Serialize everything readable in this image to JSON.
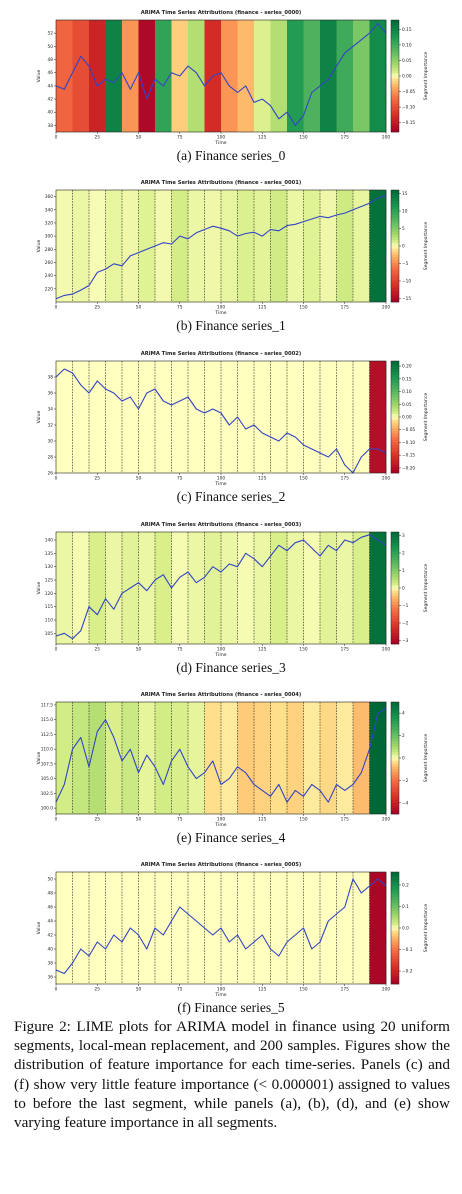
{
  "figure_caption": "Figure 2: LIME plots for ARIMA model in finance using 20 uniform segments, local-mean replacement, and 200 samples. Figures show the distribution of feature importance for each time-series. Panels (c) and (f) show very little feature importance (< 0.000001) assigned to values to before the last segment, while panels (a), (b), (d), and (e) show varying feature importance in all segments.",
  "chart_data": [
    {
      "type": "line",
      "panel_caption": "(a) Finance series_0",
      "title": "ARIMA Time Series Attributions (finance - series_0000)",
      "xlabel": "Time",
      "ylabel": "Value",
      "colorbar_label": "Segment Importance",
      "xlim": [
        0,
        200
      ],
      "ylim": [
        37,
        54
      ],
      "xticks": [
        0,
        25,
        50,
        75,
        100,
        125,
        150,
        175,
        200
      ],
      "yticks": [
        38,
        40,
        42,
        44,
        46,
        48,
        50,
        52
      ],
      "colorbar_range": [
        -0.18,
        0.18
      ],
      "colorbar_ticks": [
        "0.15",
        "0.10",
        "0.05",
        "0.00",
        "−0.05",
        "−0.10",
        "−0.15"
      ],
      "colorbar_tick_values": [
        0.15,
        0.1,
        0.05,
        0.0,
        -0.05,
        -0.1,
        -0.15
      ],
      "divider_lines": false,
      "segment_importance": [
        -0.08,
        -0.1,
        -0.14,
        0.15,
        -0.05,
        -0.17,
        0.11,
        -0.02,
        0.03,
        -0.13,
        -0.05,
        -0.03,
        0.01,
        0.03,
        0.12,
        0.09,
        0.15,
        0.1,
        0.06,
        0.14
      ],
      "series": [
        {
          "x": [
            0,
            5,
            10,
            15,
            20,
            25,
            30,
            35,
            40,
            45,
            50,
            55,
            60,
            65,
            70,
            75,
            80,
            85,
            90,
            95,
            100,
            105,
            110,
            115,
            120,
            125,
            130,
            135,
            140,
            145,
            150,
            155,
            160,
            165,
            170,
            175,
            180,
            185,
            190,
            195,
            200
          ],
          "values": [
            44,
            43.5,
            46,
            48.5,
            47,
            44,
            45,
            44.5,
            46,
            43.5,
            46,
            42,
            45,
            44,
            46,
            45.5,
            47,
            46,
            44,
            45.5,
            46,
            44,
            43,
            44,
            41.5,
            42,
            41,
            39,
            40,
            38,
            39.5,
            43,
            44,
            45,
            47,
            49,
            50,
            51,
            52,
            53.5,
            52
          ]
        }
      ]
    },
    {
      "type": "line",
      "panel_caption": "(b) Finance series_1",
      "title": "ARIMA Time Series Attributions (finance - series_0001)",
      "xlabel": "Time",
      "ylabel": "Value",
      "colorbar_label": "Segment Importance",
      "xlim": [
        0,
        200
      ],
      "ylim": [
        200,
        370
      ],
      "xticks": [
        0,
        25,
        50,
        75,
        100,
        125,
        150,
        175,
        200
      ],
      "yticks": [
        220,
        240,
        260,
        280,
        300,
        320,
        340,
        360
      ],
      "colorbar_range": [
        -16,
        16
      ],
      "colorbar_ticks": [
        "15",
        "10",
        "5",
        "0",
        "−5",
        "−10",
        "−15"
      ],
      "colorbar_tick_values": [
        15,
        10,
        5,
        0,
        -5,
        -10,
        -15
      ],
      "divider_lines": true,
      "segment_importance": [
        0.3,
        0.5,
        0.2,
        0.6,
        0.4,
        0.8,
        0.3,
        1.2,
        0.5,
        0.4,
        0.6,
        0.9,
        0.7,
        1.3,
        0.5,
        0.8,
        0.4,
        1.5,
        0.6,
        15
      ],
      "series": [
        {
          "x": [
            0,
            5,
            10,
            15,
            20,
            25,
            30,
            35,
            40,
            45,
            50,
            55,
            60,
            65,
            70,
            75,
            80,
            85,
            90,
            95,
            100,
            105,
            110,
            115,
            120,
            125,
            130,
            135,
            140,
            145,
            150,
            155,
            160,
            165,
            170,
            175,
            180,
            185,
            190,
            195,
            200
          ],
          "values": [
            205,
            210,
            212,
            218,
            225,
            245,
            250,
            258,
            255,
            270,
            275,
            280,
            285,
            290,
            288,
            300,
            296,
            305,
            310,
            315,
            312,
            308,
            300,
            304,
            306,
            300,
            310,
            308,
            316,
            318,
            322,
            326,
            330,
            328,
            332,
            335,
            340,
            345,
            350,
            358,
            362
          ]
        }
      ]
    },
    {
      "type": "line",
      "panel_caption": "(c) Finance series_2",
      "title": "ARIMA Time Series Attributions (finance - series_0002)",
      "xlabel": "Time",
      "ylabel": "Value",
      "colorbar_label": "Segment Importance",
      "xlim": [
        0,
        200
      ],
      "ylim": [
        26,
        40
      ],
      "xticks": [
        0,
        25,
        50,
        75,
        100,
        125,
        150,
        175,
        200
      ],
      "yticks": [
        26,
        28,
        30,
        32,
        34,
        36,
        38
      ],
      "colorbar_range": [
        -0.22,
        0.22
      ],
      "colorbar_ticks": [
        "0.20",
        "0.15",
        "0.10",
        "0.05",
        "0.00",
        "−0.05",
        "−0.10",
        "−0.15",
        "−0.20"
      ],
      "colorbar_tick_values": [
        0.2,
        0.15,
        0.1,
        0.05,
        0.0,
        -0.05,
        -0.1,
        -0.15,
        -0.2
      ],
      "divider_lines": true,
      "segment_importance": [
        0,
        0,
        0,
        0,
        0,
        0,
        0,
        0,
        0,
        0,
        0,
        0,
        0,
        0,
        0,
        0,
        0,
        0,
        0,
        -0.2
      ],
      "series": [
        {
          "x": [
            0,
            5,
            10,
            15,
            20,
            25,
            30,
            35,
            40,
            45,
            50,
            55,
            60,
            65,
            70,
            75,
            80,
            85,
            90,
            95,
            100,
            105,
            110,
            115,
            120,
            125,
            130,
            135,
            140,
            145,
            150,
            155,
            160,
            165,
            170,
            175,
            180,
            185,
            190,
            195,
            200
          ],
          "values": [
            38,
            39,
            38.5,
            37,
            36,
            37.5,
            36.5,
            36,
            35,
            35.5,
            34,
            36,
            36.5,
            35,
            34.5,
            35,
            35.5,
            34,
            33.5,
            34,
            33.5,
            32,
            33,
            31.5,
            32,
            31,
            30.5,
            30,
            31,
            30.5,
            29.5,
            29,
            28.5,
            28,
            29,
            27,
            26,
            28,
            29,
            29,
            28.5
          ]
        }
      ]
    },
    {
      "type": "line",
      "panel_caption": "(d) Finance series_3",
      "title": "ARIMA Time Series Attributions (finance - series_0003)",
      "xlabel": "Time",
      "ylabel": "Value",
      "colorbar_label": "Segment Importance",
      "xlim": [
        0,
        200
      ],
      "ylim": [
        101,
        143
      ],
      "xticks": [
        0,
        25,
        50,
        75,
        100,
        125,
        150,
        175,
        200
      ],
      "yticks": [
        105,
        110,
        115,
        120,
        125,
        130,
        135,
        140
      ],
      "colorbar_range": [
        -3.2,
        3.2
      ],
      "colorbar_ticks": [
        "3",
        "2",
        "1",
        "0",
        "−1",
        "−2",
        "−3"
      ],
      "colorbar_tick_values": [
        3,
        2,
        1,
        0,
        -1,
        -2,
        -3
      ],
      "divider_lines": true,
      "segment_importance": [
        0.1,
        0.05,
        0.2,
        0.1,
        0.15,
        0.1,
        0.2,
        0.05,
        0.1,
        0.15,
        0.1,
        0.05,
        0.1,
        0.2,
        0.1,
        0.05,
        0.15,
        0.1,
        0.2,
        3
      ],
      "series": [
        {
          "x": [
            0,
            5,
            10,
            15,
            20,
            25,
            30,
            35,
            40,
            45,
            50,
            55,
            60,
            65,
            70,
            75,
            80,
            85,
            90,
            95,
            100,
            105,
            110,
            115,
            120,
            125,
            130,
            135,
            140,
            145,
            150,
            155,
            160,
            165,
            170,
            175,
            180,
            185,
            190,
            195,
            200
          ],
          "values": [
            104,
            105,
            103,
            106,
            115,
            112,
            118,
            114,
            120,
            122,
            124,
            121,
            125,
            127,
            122,
            126,
            128,
            124,
            126,
            130,
            128,
            131,
            130,
            135,
            133,
            130,
            134,
            138,
            136,
            139,
            140,
            137,
            134,
            138,
            136,
            140,
            139,
            141,
            142,
            140,
            138
          ]
        }
      ]
    },
    {
      "type": "line",
      "panel_caption": "(e) Finance series_4",
      "title": "ARIMA Time Series Attributions (finance - series_0004)",
      "xlabel": "Time",
      "ylabel": "Value",
      "colorbar_label": "Segment Importance",
      "xlim": [
        0,
        200
      ],
      "ylim": [
        99,
        118
      ],
      "xticks": [
        0,
        25,
        50,
        75,
        100,
        125,
        150,
        175,
        200
      ],
      "yticks": [
        100.0,
        102.5,
        105.0,
        107.5,
        110.0,
        112.5,
        115.0,
        117.5
      ],
      "ytick_labels": [
        "100.0",
        "102.5",
        "105.0",
        "107.5",
        "110.0",
        "112.5",
        "115.0",
        "117.5"
      ],
      "colorbar_range": [
        -5,
        5
      ],
      "colorbar_ticks": [
        "4",
        "2",
        "0",
        "−2",
        "−4"
      ],
      "colorbar_tick_values": [
        4,
        2,
        0,
        -2,
        -4
      ],
      "divider_lines": true,
      "segment_importance": [
        0.4,
        0.6,
        0.8,
        0.3,
        0.5,
        0.2,
        0.4,
        0.3,
        0.2,
        -0.3,
        -0.2,
        -0.6,
        -0.5,
        -0.3,
        -0.5,
        -0.2,
        -0.4,
        -0.2,
        -0.8,
        5
      ],
      "series": [
        {
          "x": [
            0,
            5,
            10,
            15,
            20,
            25,
            30,
            35,
            40,
            45,
            50,
            55,
            60,
            65,
            70,
            75,
            80,
            85,
            90,
            95,
            100,
            105,
            110,
            115,
            120,
            125,
            130,
            135,
            140,
            145,
            150,
            155,
            160,
            165,
            170,
            175,
            180,
            185,
            190,
            195,
            200
          ],
          "values": [
            101,
            104,
            110,
            112,
            107,
            113,
            115,
            112,
            108,
            110,
            106,
            109,
            107,
            104,
            108,
            110,
            107,
            105,
            106,
            108,
            104,
            105,
            107,
            106,
            104,
            103,
            102,
            104,
            101,
            103,
            102,
            104,
            103,
            101,
            104,
            103,
            104,
            106,
            110,
            116,
            117
          ]
        }
      ]
    },
    {
      "type": "line",
      "panel_caption": "(f) Finance series_5",
      "title": "ARIMA Time Series Attributions (finance - series_0005)",
      "xlabel": "Time",
      "ylabel": "Value",
      "colorbar_label": "Segment Importance",
      "xlim": [
        0,
        200
      ],
      "ylim": [
        35,
        51
      ],
      "xticks": [
        0,
        25,
        50,
        75,
        100,
        125,
        150,
        175,
        200
      ],
      "yticks": [
        36,
        38,
        40,
        42,
        44,
        46,
        48,
        50
      ],
      "colorbar_range": [
        -0.26,
        0.26
      ],
      "colorbar_ticks": [
        "0.2",
        "0.1",
        "0.0",
        "−0.1",
        "−0.2"
      ],
      "colorbar_tick_values": [
        0.2,
        0.1,
        0.0,
        -0.1,
        -0.2
      ],
      "divider_lines": true,
      "segment_importance": [
        0,
        0,
        0,
        0,
        0,
        0,
        0,
        0,
        0,
        0,
        0,
        0,
        0,
        0,
        0,
        0,
        0,
        0,
        0,
        -0.25
      ],
      "series": [
        {
          "x": [
            0,
            5,
            10,
            15,
            20,
            25,
            30,
            35,
            40,
            45,
            50,
            55,
            60,
            65,
            70,
            75,
            80,
            85,
            90,
            95,
            100,
            105,
            110,
            115,
            120,
            125,
            130,
            135,
            140,
            145,
            150,
            155,
            160,
            165,
            170,
            175,
            180,
            185,
            190,
            195,
            200
          ],
          "values": [
            37,
            36.5,
            38,
            40,
            39,
            41,
            40,
            42,
            41,
            43,
            42,
            40,
            43,
            42,
            44,
            46,
            45,
            44,
            43,
            42,
            43,
            41,
            42,
            40,
            41,
            42,
            40,
            39,
            41,
            42,
            43,
            40,
            41,
            44,
            45,
            46,
            50,
            48,
            49,
            50,
            49
          ]
        }
      ]
    }
  ]
}
